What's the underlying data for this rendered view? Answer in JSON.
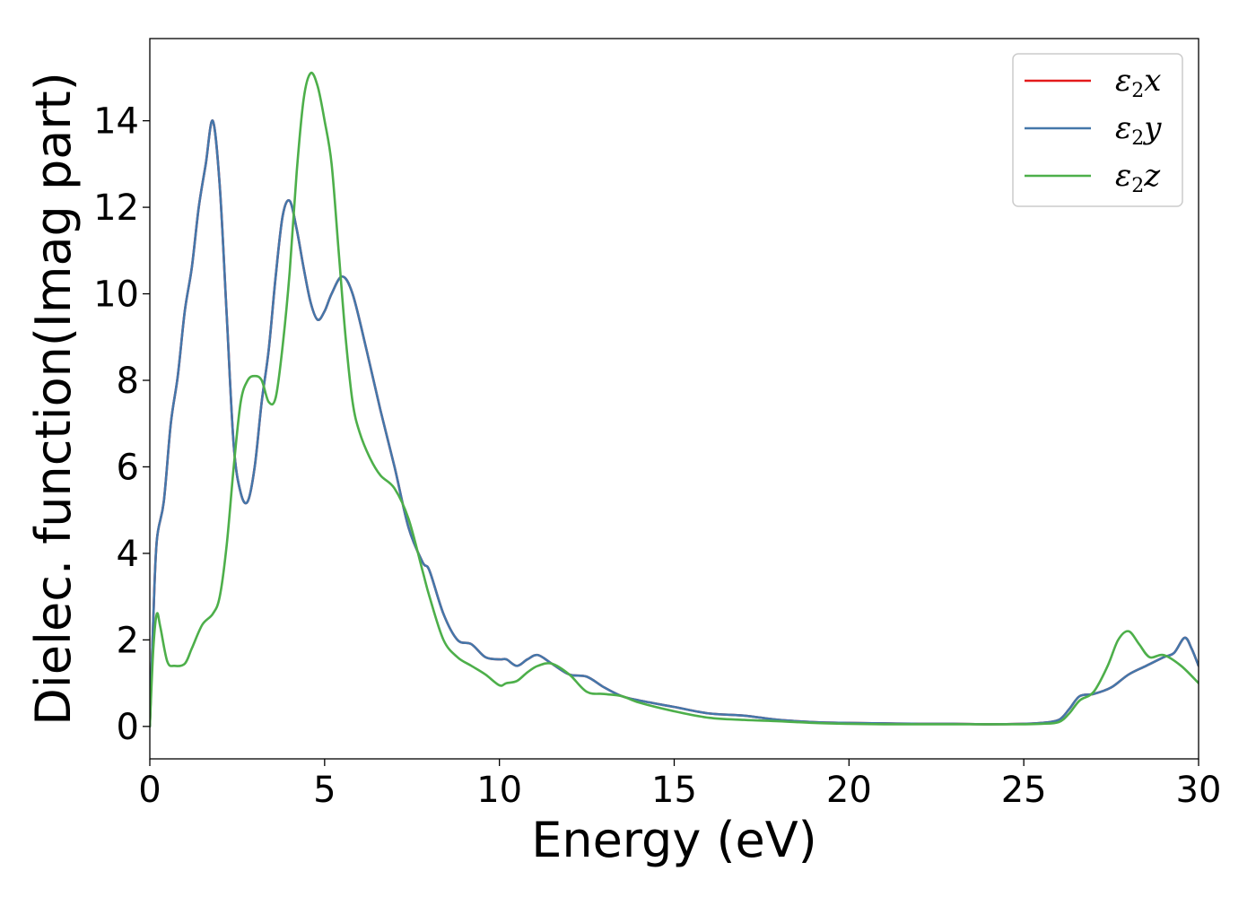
{
  "chart_data": {
    "type": "line",
    "title": "",
    "xlabel": "Energy (eV)",
    "ylabel": "Dielec. function(Imag part)",
    "xlim": [
      0,
      30
    ],
    "ylim": [
      -0.75,
      15.9
    ],
    "xticks": [
      0,
      5,
      10,
      15,
      20,
      25,
      30
    ],
    "yticks": [
      0,
      2,
      4,
      6,
      8,
      10,
      12,
      14
    ],
    "grid": false,
    "legend_position": "top-right",
    "series": [
      {
        "name": "ε2x",
        "symbol": "ε",
        "subscript": "2",
        "axis": "x",
        "color": "#e41a1c",
        "x": [
          0,
          0.1,
          0.2,
          0.4,
          0.6,
          0.8,
          1.0,
          1.2,
          1.4,
          1.6,
          1.8,
          2.0,
          2.2,
          2.4,
          2.6,
          2.8,
          3.0,
          3.2,
          3.4,
          3.6,
          3.8,
          4.0,
          4.2,
          4.4,
          4.6,
          4.8,
          5.0,
          5.2,
          5.5,
          5.8,
          6.2,
          6.6,
          7.0,
          7.4,
          7.8,
          8.0,
          8.4,
          8.8,
          9.2,
          9.6,
          10.0,
          10.2,
          10.5,
          10.8,
          11.1,
          11.5,
          12.0,
          12.5,
          13.0,
          13.5,
          14.0,
          15.0,
          16.0,
          17.0,
          18.0,
          19.0,
          20.0,
          21.0,
          22.0,
          23.0,
          24.0,
          25.0,
          25.5,
          26.0,
          26.3,
          26.6,
          27.0,
          27.5,
          28.0,
          28.5,
          29.0,
          29.3,
          29.6,
          29.8,
          30.0
        ],
        "y": [
          0.0,
          2.5,
          4.3,
          5.2,
          7.0,
          8.1,
          9.6,
          10.6,
          12.0,
          13.0,
          14.0,
          12.5,
          9.5,
          6.5,
          5.4,
          5.2,
          6.0,
          7.5,
          8.7,
          10.4,
          11.8,
          12.15,
          11.5,
          10.6,
          9.8,
          9.4,
          9.6,
          10.0,
          10.4,
          10.0,
          8.7,
          7.3,
          6.0,
          4.6,
          3.8,
          3.6,
          2.6,
          2.0,
          1.9,
          1.6,
          1.55,
          1.55,
          1.4,
          1.55,
          1.65,
          1.45,
          1.2,
          1.15,
          0.9,
          0.7,
          0.6,
          0.45,
          0.3,
          0.25,
          0.15,
          0.1,
          0.08,
          0.07,
          0.06,
          0.06,
          0.05,
          0.06,
          0.08,
          0.15,
          0.4,
          0.7,
          0.75,
          0.9,
          1.2,
          1.4,
          1.6,
          1.7,
          2.05,
          1.8,
          1.4
        ]
      },
      {
        "name": "ε2y",
        "symbol": "ε",
        "subscript": "2",
        "axis": "y",
        "color": "#4477aa",
        "x": [
          0,
          0.1,
          0.2,
          0.4,
          0.6,
          0.8,
          1.0,
          1.2,
          1.4,
          1.6,
          1.8,
          2.0,
          2.2,
          2.4,
          2.6,
          2.8,
          3.0,
          3.2,
          3.4,
          3.6,
          3.8,
          4.0,
          4.2,
          4.4,
          4.6,
          4.8,
          5.0,
          5.2,
          5.5,
          5.8,
          6.2,
          6.6,
          7.0,
          7.4,
          7.8,
          8.0,
          8.4,
          8.8,
          9.2,
          9.6,
          10.0,
          10.2,
          10.5,
          10.8,
          11.1,
          11.5,
          12.0,
          12.5,
          13.0,
          13.5,
          14.0,
          15.0,
          16.0,
          17.0,
          18.0,
          19.0,
          20.0,
          21.0,
          22.0,
          23.0,
          24.0,
          25.0,
          25.5,
          26.0,
          26.3,
          26.6,
          27.0,
          27.5,
          28.0,
          28.5,
          29.0,
          29.3,
          29.6,
          29.8,
          30.0
        ],
        "y": [
          0.0,
          2.5,
          4.3,
          5.2,
          7.0,
          8.1,
          9.6,
          10.6,
          12.0,
          13.0,
          14.0,
          12.5,
          9.5,
          6.5,
          5.4,
          5.2,
          6.0,
          7.5,
          8.7,
          10.4,
          11.8,
          12.15,
          11.5,
          10.6,
          9.8,
          9.4,
          9.6,
          10.0,
          10.4,
          10.0,
          8.7,
          7.3,
          6.0,
          4.6,
          3.8,
          3.6,
          2.6,
          2.0,
          1.9,
          1.6,
          1.55,
          1.55,
          1.4,
          1.55,
          1.65,
          1.45,
          1.2,
          1.15,
          0.9,
          0.7,
          0.6,
          0.45,
          0.3,
          0.25,
          0.15,
          0.1,
          0.08,
          0.07,
          0.06,
          0.06,
          0.05,
          0.06,
          0.08,
          0.15,
          0.4,
          0.7,
          0.75,
          0.9,
          1.2,
          1.4,
          1.6,
          1.7,
          2.05,
          1.8,
          1.4
        ]
      },
      {
        "name": "ε2z",
        "symbol": "ε",
        "subscript": "2",
        "axis": "z",
        "color": "#4daf4a",
        "x": [
          0,
          0.1,
          0.2,
          0.3,
          0.5,
          0.7,
          1.0,
          1.2,
          1.5,
          1.8,
          2.0,
          2.2,
          2.4,
          2.6,
          2.8,
          3.0,
          3.2,
          3.4,
          3.6,
          3.8,
          4.0,
          4.2,
          4.4,
          4.6,
          4.8,
          5.0,
          5.2,
          5.4,
          5.6,
          5.8,
          6.0,
          6.3,
          6.6,
          7.0,
          7.4,
          7.8,
          8.0,
          8.4,
          8.8,
          9.2,
          9.6,
          10.0,
          10.2,
          10.5,
          10.8,
          11.1,
          11.5,
          12.0,
          12.5,
          13.0,
          13.5,
          14.0,
          15.0,
          16.0,
          17.0,
          18.0,
          19.0,
          20.0,
          21.0,
          22.0,
          23.0,
          24.0,
          25.0,
          25.5,
          26.0,
          26.3,
          26.6,
          27.0,
          27.4,
          27.7,
          28.0,
          28.3,
          28.6,
          29.0,
          29.5,
          30.0
        ],
        "y": [
          0.0,
          1.8,
          2.6,
          2.3,
          1.5,
          1.4,
          1.45,
          1.8,
          2.35,
          2.6,
          3.0,
          4.2,
          6.0,
          7.5,
          8.0,
          8.1,
          8.0,
          7.5,
          7.6,
          8.8,
          10.5,
          12.8,
          14.5,
          15.1,
          14.8,
          14.0,
          13.0,
          11.0,
          9.0,
          7.5,
          6.8,
          6.2,
          5.8,
          5.5,
          4.8,
          3.6,
          3.0,
          2.0,
          1.6,
          1.4,
          1.2,
          0.95,
          1.0,
          1.05,
          1.25,
          1.4,
          1.45,
          1.2,
          0.8,
          0.75,
          0.7,
          0.55,
          0.35,
          0.2,
          0.15,
          0.12,
          0.08,
          0.06,
          0.05,
          0.05,
          0.05,
          0.05,
          0.05,
          0.06,
          0.1,
          0.3,
          0.6,
          0.8,
          1.4,
          2.0,
          2.2,
          1.9,
          1.6,
          1.65,
          1.4,
          1.0
        ]
      }
    ]
  }
}
